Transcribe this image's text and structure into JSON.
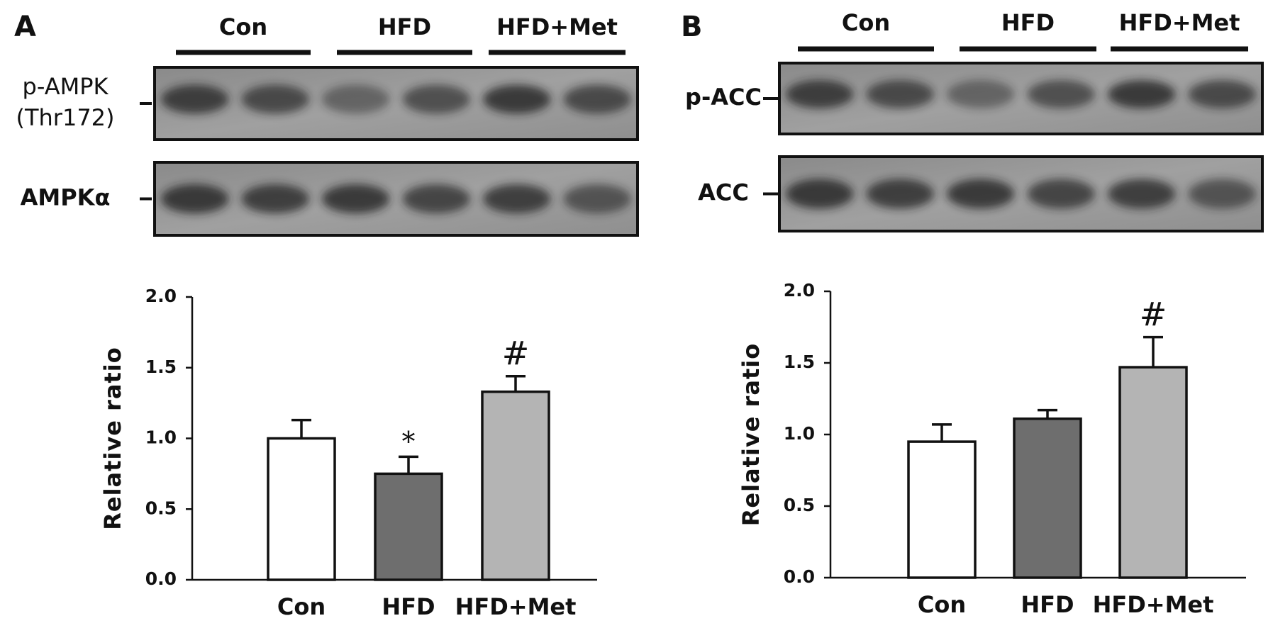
{
  "chart_data": [
    {
      "type": "bar",
      "panel": "A",
      "blot_groups": [
        "Con",
        "HFD",
        "HFD+Met"
      ],
      "blot_rows": [
        [
          "p-AMPK",
          "(Thr172)"
        ],
        [
          "AMPKα"
        ]
      ],
      "ylabel": "Relative ratio",
      "categories": [
        "Con",
        "HFD",
        "HFD+Met"
      ],
      "values": [
        1.0,
        0.75,
        1.33
      ],
      "errors": [
        0.13,
        0.12,
        0.11
      ],
      "markers": [
        null,
        "*",
        "#"
      ],
      "colors": [
        "#ffffff",
        "#6e6e6e",
        "#b4b4b4"
      ],
      "ylim": [
        0,
        2.0
      ],
      "yticks": [
        {
          "value": 0,
          "label": "0.0"
        },
        {
          "value": 0.5,
          "label": "0.5"
        },
        {
          "value": 1.0,
          "label": "1.0"
        },
        {
          "value": 1.5,
          "label": "1.5"
        },
        {
          "value": 2.0,
          "label": "2.0"
        }
      ]
    },
    {
      "type": "bar",
      "panel": "B",
      "blot_groups": [
        "Con",
        "HFD",
        "HFD+Met"
      ],
      "blot_rows": [
        [
          "p-ACC"
        ],
        [
          "ACC"
        ]
      ],
      "ylabel": "Relative ratio",
      "categories": [
        "Con",
        "HFD",
        "HFD+Met"
      ],
      "values": [
        0.95,
        1.11,
        1.47
      ],
      "errors": [
        0.12,
        0.06,
        0.21
      ],
      "markers": [
        null,
        null,
        "#"
      ],
      "colors": [
        "#ffffff",
        "#6e6e6e",
        "#b4b4b4"
      ],
      "ylim": [
        0,
        2.0
      ],
      "yticks": [
        {
          "value": 0,
          "label": "0.0"
        },
        {
          "value": 0.5,
          "label": "0.5"
        },
        {
          "value": 1.0,
          "label": "1.0"
        },
        {
          "value": 1.5,
          "label": "1.5"
        },
        {
          "value": 2.0,
          "label": "2.0"
        }
      ]
    }
  ]
}
